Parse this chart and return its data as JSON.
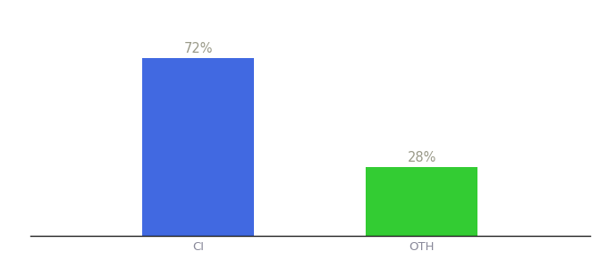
{
  "categories": [
    "CI",
    "OTH"
  ],
  "values": [
    72,
    28
  ],
  "bar_colors": [
    "#4169e1",
    "#33cc33"
  ],
  "label_texts": [
    "72%",
    "28%"
  ],
  "label_color": "#999988",
  "background_color": "#ffffff",
  "bar_width": 0.5,
  "tick_fontsize": 9.5,
  "label_fontsize": 10.5
}
